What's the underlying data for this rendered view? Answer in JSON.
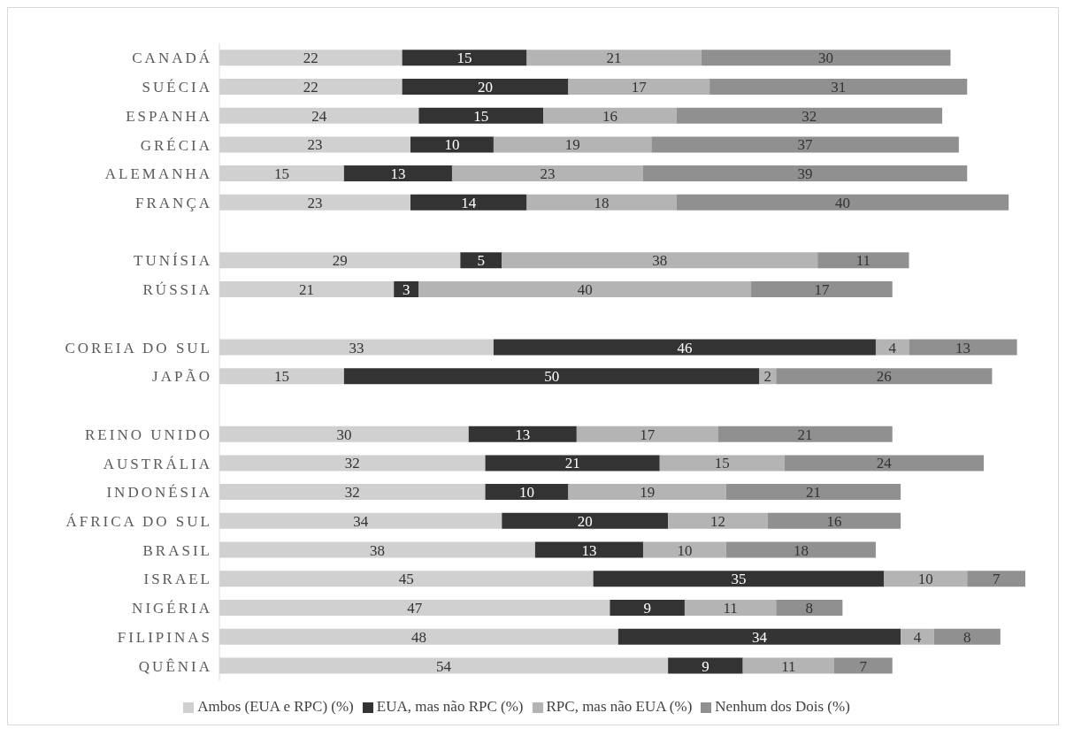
{
  "chart_data": {
    "type": "bar",
    "orientation": "horizontal",
    "stacked": true,
    "data_labels": true,
    "grid": false,
    "legend": "bottom",
    "tick_labels": "y",
    "categories": [
      "CANADÁ",
      "SUÉCIA",
      "ESPANHA",
      "GRÉCIA",
      "ALEMANHA",
      "FRANÇA",
      null,
      "TUNÍSIA",
      "RÚSSIA",
      null,
      "COREIA DO SUL",
      "JAPÃO",
      null,
      "REINO UNIDO",
      "AUSTRÁLIA",
      "INDONÉSIA",
      "ÁFRICA DO SUL",
      "BRASIL",
      "ISRAEL",
      "NIGÉRIA",
      "FILIPINAS",
      "QUÊNIA"
    ],
    "series": [
      {
        "name": "Ambos (EUA e RPC) (%)",
        "color": "#d0d0d0",
        "values": [
          22,
          22,
          24,
          23,
          15,
          23,
          null,
          29,
          21,
          null,
          33,
          15,
          null,
          30,
          32,
          32,
          34,
          38,
          45,
          47,
          48,
          54
        ]
      },
      {
        "name": "EUA, mas não RPC (%)",
        "color": "#333333",
        "values": [
          15,
          20,
          15,
          10,
          13,
          14,
          null,
          5,
          3,
          null,
          46,
          50,
          null,
          13,
          21,
          10,
          20,
          13,
          35,
          9,
          34,
          9
        ]
      },
      {
        "name": "RPC, mas não EUA (%)",
        "color": "#b4b4b4",
        "values": [
          21,
          17,
          16,
          19,
          23,
          18,
          null,
          38,
          40,
          null,
          4,
          2,
          null,
          17,
          15,
          19,
          12,
          10,
          10,
          11,
          4,
          11
        ]
      },
      {
        "name": "Nenhum dos Dois (%)",
        "color": "#909090",
        "values": [
          30,
          31,
          32,
          37,
          39,
          40,
          null,
          11,
          17,
          null,
          13,
          26,
          null,
          21,
          24,
          21,
          16,
          18,
          7,
          8,
          8,
          7
        ]
      }
    ]
  }
}
